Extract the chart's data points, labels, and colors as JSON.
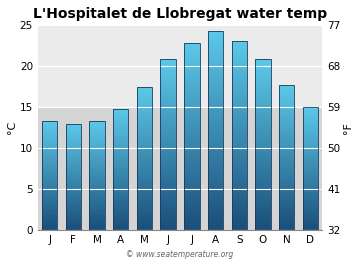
{
  "title": "L'Hospitalet de Llobregat water temp",
  "months": [
    "J",
    "F",
    "M",
    "A",
    "M",
    "J",
    "J",
    "A",
    "S",
    "O",
    "N",
    "D"
  ],
  "values_c": [
    13.3,
    13.0,
    13.3,
    14.8,
    17.4,
    20.8,
    22.8,
    24.2,
    23.1,
    20.8,
    17.7,
    15.0
  ],
  "ylabel_left": "°C",
  "ylabel_right": "°F",
  "yticks_c": [
    0,
    5,
    10,
    15,
    20,
    25
  ],
  "yticks_f": [
    32,
    41,
    50,
    59,
    68,
    77
  ],
  "ylim": [
    0,
    25
  ],
  "bar_color_top": "#5bc8e8",
  "bar_color_bottom": "#1a4e7a",
  "bar_edge_color": "#1a3a5c",
  "background_color": "#ffffff",
  "plot_bg_color_dark": "#d4d4d4",
  "plot_bg_color_light": "#ebebeb",
  "grid_color": "#ffffff",
  "title_fontsize": 10,
  "axis_fontsize": 8,
  "tick_fontsize": 7.5,
  "watermark": "© www.seatemperature.org",
  "bar_width": 0.65
}
